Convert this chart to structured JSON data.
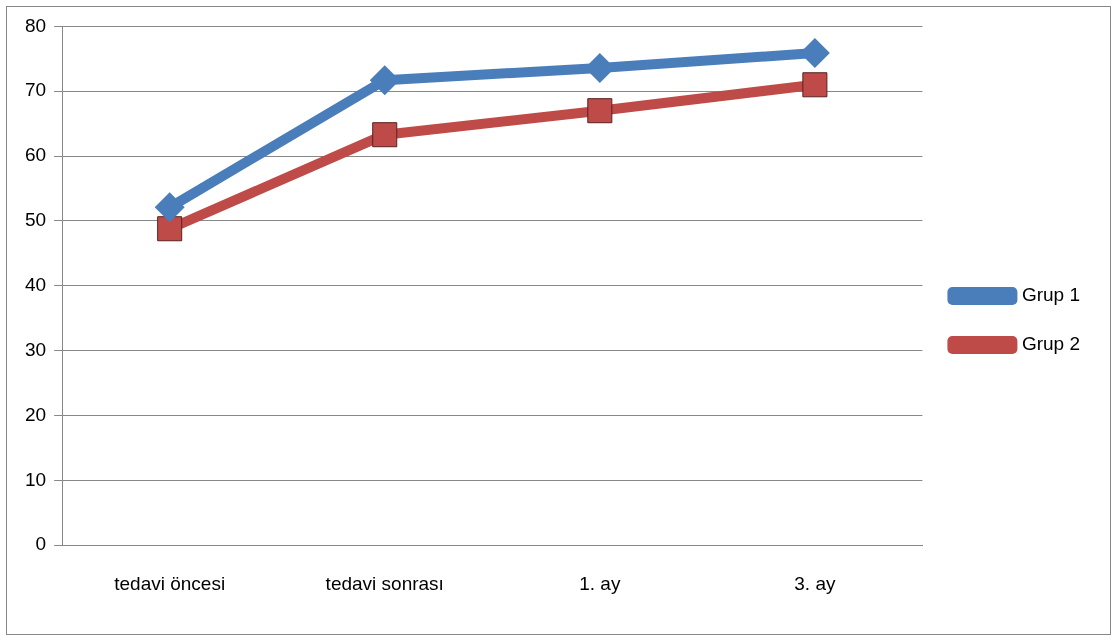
{
  "chart_data": {
    "type": "line",
    "categories": [
      "tedavi öncesi",
      "tedavi sonrası",
      "1. ay",
      "3. ay"
    ],
    "series": [
      {
        "name": "Grup 1",
        "color": "#4a7ebb",
        "marker": "diamond",
        "values": [
          52.1,
          71.7,
          73.6,
          75.9
        ]
      },
      {
        "name": "Grup 2",
        "color": "#be4b48",
        "marker": "square",
        "values": [
          48.8,
          63.3,
          67.0,
          71.0
        ]
      }
    ],
    "ylim": [
      0,
      80
    ],
    "yticks": [
      0,
      10,
      20,
      30,
      40,
      50,
      60,
      70,
      80
    ],
    "grid": "y",
    "legend": "right",
    "line_style": "solid"
  }
}
